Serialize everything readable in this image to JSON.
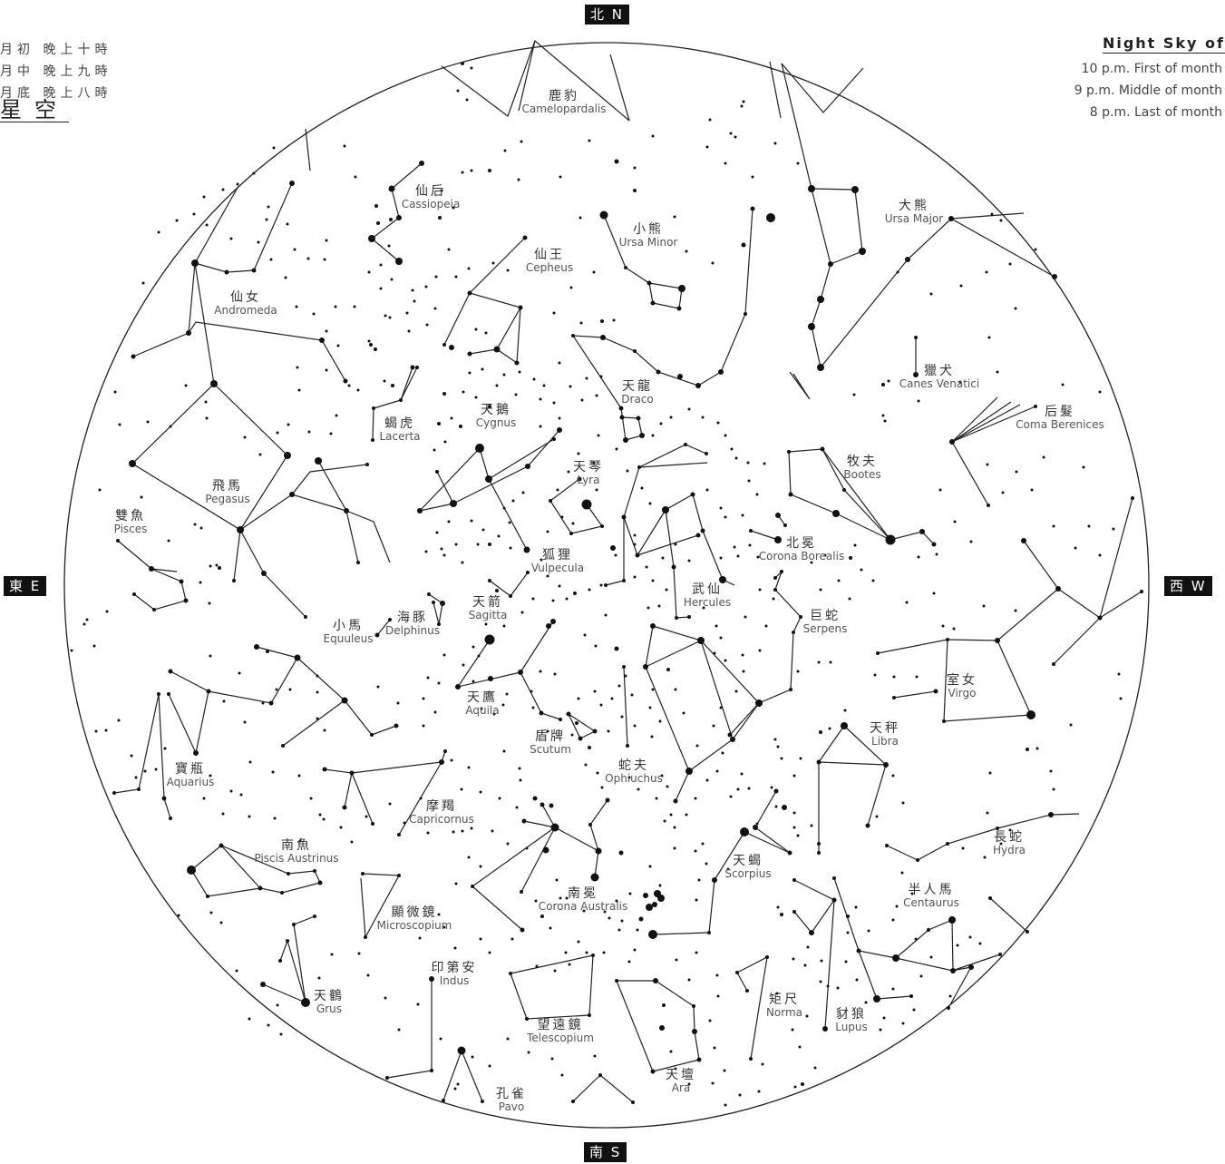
{
  "directions": {
    "north": "北 N",
    "south": "南 S",
    "east": "東 E",
    "west": "西 W"
  },
  "header_zh": {
    "time_lines": [
      "月初 晚上十時",
      "月中 晚上九時",
      "月底 晚上八時"
    ],
    "title": "星空"
  },
  "header_en": {
    "title": "Night Sky of",
    "time_lines": [
      "10 p.m. First of month",
      "9 p.m. Middle of month",
      "8 p.m. Last of month"
    ]
  },
  "constellations": [
    {
      "id": "camelopardalis",
      "zh": "鹿豹",
      "en": "Camelopardalis"
    },
    {
      "id": "cassiopeia",
      "zh": "仙后",
      "en": "Cassiopeia"
    },
    {
      "id": "ursa-minor",
      "zh": "小熊",
      "en": "Ursa Minor"
    },
    {
      "id": "cepheus",
      "zh": "仙王",
      "en": "Cepheus"
    },
    {
      "id": "andromeda",
      "zh": "仙女",
      "en": "Andromeda"
    },
    {
      "id": "ursa-major",
      "zh": "大熊",
      "en": "Ursa Major"
    },
    {
      "id": "draco",
      "zh": "天龍",
      "en": "Draco"
    },
    {
      "id": "canes-venatici",
      "zh": "獵犬",
      "en": "Canes Venatici"
    },
    {
      "id": "coma-berenices",
      "zh": "后髮",
      "en": "Coma Berenices"
    },
    {
      "id": "cygnus",
      "zh": "天鵝",
      "en": "Cygnus"
    },
    {
      "id": "lacerta",
      "zh": "蝎虎",
      "en": "Lacerta"
    },
    {
      "id": "lyra",
      "zh": "天琴",
      "en": "Lyra"
    },
    {
      "id": "bootes",
      "zh": "牧夫",
      "en": "Bootes"
    },
    {
      "id": "pegasus",
      "zh": "飛馬",
      "en": "Pegasus"
    },
    {
      "id": "pisces",
      "zh": "雙魚",
      "en": "Pisces"
    },
    {
      "id": "vulpecula",
      "zh": "狐狸",
      "en": "Vulpecula"
    },
    {
      "id": "corona-borealis",
      "zh": "北冕",
      "en": "Corona Borealis"
    },
    {
      "id": "hercules",
      "zh": "武仙",
      "en": "Hercules"
    },
    {
      "id": "sagitta",
      "zh": "天箭",
      "en": "Sagitta"
    },
    {
      "id": "delphinus",
      "zh": "海豚",
      "en": "Delphinus"
    },
    {
      "id": "equuleus",
      "zh": "小馬",
      "en": "Equuleus"
    },
    {
      "id": "serpens",
      "zh": "巨蛇",
      "en": "Serpens"
    },
    {
      "id": "aquila",
      "zh": "天鷹",
      "en": "Aquila"
    },
    {
      "id": "virgo",
      "zh": "室女",
      "en": "Virgo"
    },
    {
      "id": "libra",
      "zh": "天秤",
      "en": "Libra"
    },
    {
      "id": "scutum",
      "zh": "盾牌",
      "en": "Scutum"
    },
    {
      "id": "aquarius",
      "zh": "寶瓶",
      "en": "Aquarius"
    },
    {
      "id": "ophiuchus",
      "zh": "蛇夫",
      "en": "Ophiuchus"
    },
    {
      "id": "capricornus",
      "zh": "摩羯",
      "en": "Capricornus"
    },
    {
      "id": "hydra",
      "zh": "長蛇",
      "en": "Hydra"
    },
    {
      "id": "piscis-austrinus",
      "zh": "南魚",
      "en": "Piscis Austrinus"
    },
    {
      "id": "scorpius",
      "zh": "天蝎",
      "en": "Scorpius"
    },
    {
      "id": "centaurus",
      "zh": "半人馬",
      "en": "Centaurus"
    },
    {
      "id": "corona-australis",
      "zh": "南冕",
      "en": "Corona Australis"
    },
    {
      "id": "microscopium",
      "zh": "顯微鏡",
      "en": "Microscopium"
    },
    {
      "id": "indus",
      "zh": "印第安",
      "en": "Indus"
    },
    {
      "id": "grus",
      "zh": "天鶴",
      "en": "Grus"
    },
    {
      "id": "norma",
      "zh": "矩尺",
      "en": "Norma"
    },
    {
      "id": "lupus",
      "zh": "豺狼",
      "en": "Lupus"
    },
    {
      "id": "telescopium",
      "zh": "望遠鏡",
      "en": "Telescopium"
    },
    {
      "id": "ara",
      "zh": "天壇",
      "en": "Ara"
    },
    {
      "id": "pavo",
      "zh": "孔雀",
      "en": "Pavo"
    }
  ]
}
